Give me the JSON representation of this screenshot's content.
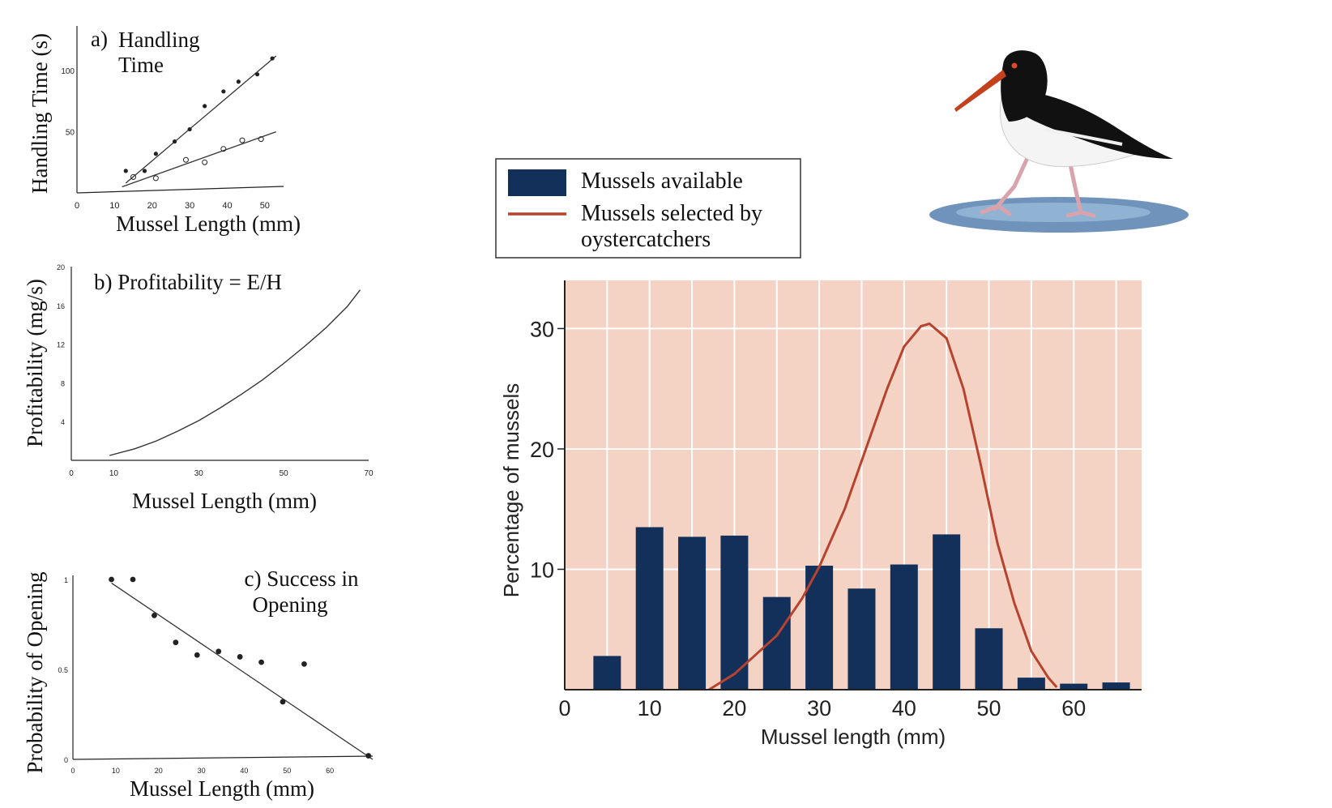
{
  "colors": {
    "bar": "#13305a",
    "curve": "#b5432f",
    "panel_bg": "#f4d3c4",
    "points": "#222222"
  },
  "chart_data": [
    {
      "type": "scatter",
      "id": "handling_time",
      "title_prefix": "a)",
      "title": "Handling",
      "title_line2": "Time",
      "xlabel": "Mussel Length (mm)",
      "ylabel": "Handling Time (s)",
      "xlim": [
        0,
        55
      ],
      "ylim": [
        0,
        120
      ],
      "x_ticks": [
        0,
        10,
        20,
        30,
        40,
        50
      ],
      "y_ticks": [
        50,
        100
      ],
      "series": [
        {
          "marker": "filled",
          "x": [
            13,
            18,
            21,
            26,
            30,
            34,
            39,
            43,
            48,
            52
          ],
          "y": [
            18,
            18,
            32,
            42,
            52,
            71,
            83,
            91,
            97,
            110
          ],
          "fit": [
            [
              13,
              8
            ],
            [
              53,
              112
            ]
          ]
        },
        {
          "marker": "open",
          "x": [
            15,
            21,
            29,
            34,
            39,
            44,
            49
          ],
          "y": [
            13,
            12,
            27,
            25,
            36,
            43,
            44
          ],
          "fit": [
            [
              12,
              5
            ],
            [
              53,
              50
            ]
          ]
        }
      ]
    },
    {
      "type": "line",
      "id": "profitability",
      "title": "b) Profitability = E/H",
      "xlabel": "Mussel Length (mm)",
      "ylabel": "Profitability (mg/s)",
      "xlim": [
        0,
        70
      ],
      "ylim": [
        0,
        20
      ],
      "x_ticks": [
        0,
        10,
        30,
        50,
        70
      ],
      "y_ticks": [
        4,
        8,
        12,
        16,
        20
      ],
      "x": [
        9,
        15,
        20,
        25,
        30,
        35,
        40,
        45,
        50,
        55,
        60,
        65,
        68
      ],
      "y": [
        0.5,
        1.2,
        2,
        3,
        4.1,
        5.4,
        6.8,
        8.3,
        10,
        11.8,
        13.7,
        15.9,
        17.6
      ]
    },
    {
      "type": "scatter",
      "id": "opening_success",
      "title": "c) Success in",
      "title_line2": "Opening",
      "xlabel": "Mussel Length (mm)",
      "ylabel": "Probability of Opening",
      "xlim": [
        0,
        70
      ],
      "ylim": [
        0,
        1
      ],
      "x_ticks": [
        0,
        10,
        20,
        30,
        40,
        50,
        60
      ],
      "y_ticks": [
        0,
        0.5,
        1
      ],
      "x": [
        9,
        14,
        19,
        24,
        29,
        34,
        39,
        44,
        49,
        54,
        69
      ],
      "y": [
        1,
        1,
        0.8,
        0.65,
        0.58,
        0.6,
        0.57,
        0.54,
        0.32,
        0.53,
        0.02
      ],
      "fit": [
        [
          9,
          0.98
        ],
        [
          70,
          0
        ]
      ]
    },
    {
      "type": "bar",
      "id": "mussel_selection",
      "xlabel": "Mussel length (mm)",
      "ylabel": "Percentage of mussels",
      "xlim": [
        0,
        68
      ],
      "ylim": [
        0,
        34
      ],
      "x_ticks": [
        0,
        10,
        20,
        30,
        40,
        50,
        60
      ],
      "y_ticks": [
        10,
        20,
        30
      ],
      "grid": true,
      "legend_position": "top",
      "legend": [
        "Mussels available",
        "Mussels selected by",
        "oystercatchers"
      ],
      "series": [
        {
          "name": "Mussels available",
          "type": "bar",
          "x": [
            5,
            10,
            15,
            20,
            25,
            30,
            35,
            40,
            45,
            50,
            55,
            60,
            65
          ],
          "values": [
            2.8,
            13.5,
            12.7,
            12.8,
            7.7,
            10.3,
            8.4,
            10.4,
            12.9,
            5.1,
            1.0,
            0.5,
            0.6
          ]
        },
        {
          "name": "Mussels selected by oystercatchers",
          "type": "line",
          "x": [
            17,
            20,
            25,
            28,
            30,
            33,
            36,
            38,
            40,
            42,
            43,
            45,
            47,
            49,
            51,
            53,
            55,
            57,
            58
          ],
          "y": [
            0,
            1.3,
            4.5,
            7.6,
            10.2,
            15,
            21,
            25,
            28.5,
            30.2,
            30.4,
            29.2,
            25,
            18.8,
            12.2,
            7.2,
            3.2,
            1.0,
            0.2
          ]
        }
      ]
    }
  ]
}
